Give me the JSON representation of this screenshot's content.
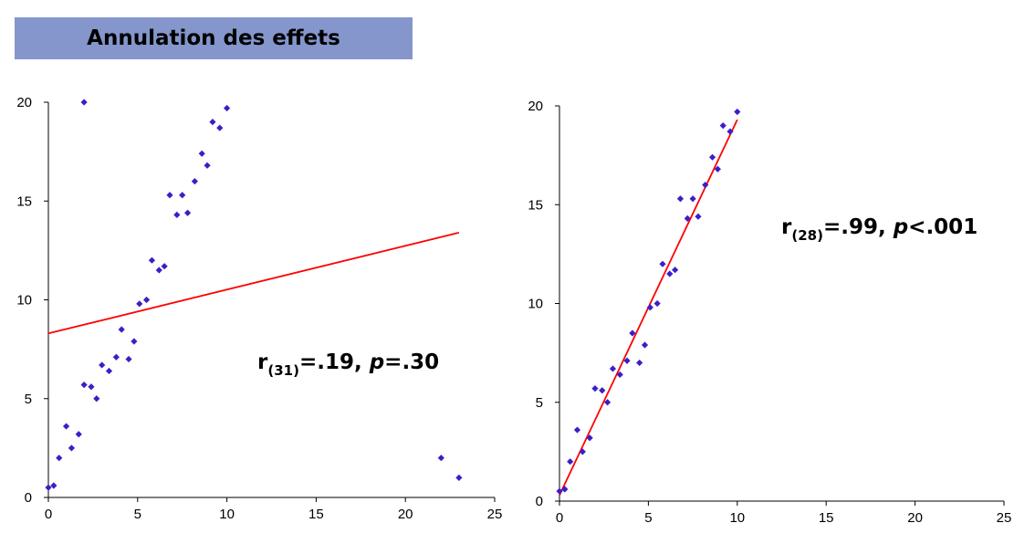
{
  "title": "Annulation des effets",
  "chart_data": [
    {
      "type": "scatter",
      "title": "",
      "xlabel": "",
      "ylabel": "",
      "xlim": [
        0,
        25
      ],
      "ylim": [
        0,
        20
      ],
      "xticks": [
        0,
        5,
        10,
        15,
        20,
        25
      ],
      "yticks": [
        0,
        5,
        10,
        15,
        20
      ],
      "grid": false,
      "marker_color": "#3A1FC8",
      "line_color": "#FF0000",
      "points": [
        [
          0.0,
          0.5
        ],
        [
          0.3,
          0.6
        ],
        [
          0.6,
          2.0
        ],
        [
          1.0,
          3.6
        ],
        [
          1.3,
          2.5
        ],
        [
          1.7,
          3.2
        ],
        [
          2.0,
          20.0
        ],
        [
          2.0,
          5.7
        ],
        [
          2.4,
          5.6
        ],
        [
          2.7,
          5.0
        ],
        [
          3.0,
          6.7
        ],
        [
          3.4,
          6.4
        ],
        [
          3.8,
          7.1
        ],
        [
          4.1,
          8.5
        ],
        [
          4.5,
          7.0
        ],
        [
          4.8,
          7.9
        ],
        [
          5.1,
          9.8
        ],
        [
          5.5,
          10.0
        ],
        [
          5.8,
          12.0
        ],
        [
          6.2,
          11.5
        ],
        [
          6.5,
          11.7
        ],
        [
          6.8,
          15.3
        ],
        [
          7.2,
          14.3
        ],
        [
          7.5,
          15.3
        ],
        [
          7.8,
          14.4
        ],
        [
          8.2,
          16.0
        ],
        [
          8.6,
          17.4
        ],
        [
          8.9,
          16.8
        ],
        [
          9.2,
          19.0
        ],
        [
          9.6,
          18.7
        ],
        [
          10.0,
          19.7
        ],
        [
          22.0,
          2.0
        ],
        [
          23.0,
          1.0
        ]
      ],
      "trendline": [
        [
          0,
          8.3
        ],
        [
          23,
          13.4
        ]
      ],
      "annotation": {
        "r": "r",
        "df": "(31)",
        "value": "=.19, ",
        "p": "p",
        "pval": "=.30"
      }
    },
    {
      "type": "scatter",
      "title": "",
      "xlabel": "",
      "ylabel": "",
      "xlim": [
        0,
        25
      ],
      "ylim": [
        0,
        20
      ],
      "xticks": [
        0,
        5,
        10,
        15,
        20,
        25
      ],
      "yticks": [
        0,
        5,
        10,
        15,
        20
      ],
      "grid": false,
      "marker_color": "#3A1FC8",
      "line_color": "#FF0000",
      "points": [
        [
          0.0,
          0.5
        ],
        [
          0.3,
          0.6
        ],
        [
          0.6,
          2.0
        ],
        [
          1.0,
          3.6
        ],
        [
          1.3,
          2.5
        ],
        [
          1.7,
          3.2
        ],
        [
          2.0,
          5.7
        ],
        [
          2.4,
          5.6
        ],
        [
          2.7,
          5.0
        ],
        [
          3.0,
          6.7
        ],
        [
          3.4,
          6.4
        ],
        [
          3.8,
          7.1
        ],
        [
          4.1,
          8.5
        ],
        [
          4.5,
          7.0
        ],
        [
          4.8,
          7.9
        ],
        [
          5.1,
          9.8
        ],
        [
          5.5,
          10.0
        ],
        [
          5.8,
          12.0
        ],
        [
          6.2,
          11.5
        ],
        [
          6.5,
          11.7
        ],
        [
          6.8,
          15.3
        ],
        [
          7.2,
          14.3
        ],
        [
          7.5,
          15.3
        ],
        [
          7.8,
          14.4
        ],
        [
          8.2,
          16.0
        ],
        [
          8.6,
          17.4
        ],
        [
          8.9,
          16.8
        ],
        [
          9.2,
          19.0
        ],
        [
          9.6,
          18.7
        ],
        [
          10.0,
          19.7
        ]
      ],
      "trendline": [
        [
          0,
          0.3
        ],
        [
          10,
          19.3
        ]
      ],
      "annotation": {
        "r": "r",
        "df": "(28)",
        "value": "=.99, ",
        "p": "p",
        "pval": "<.001"
      }
    }
  ]
}
